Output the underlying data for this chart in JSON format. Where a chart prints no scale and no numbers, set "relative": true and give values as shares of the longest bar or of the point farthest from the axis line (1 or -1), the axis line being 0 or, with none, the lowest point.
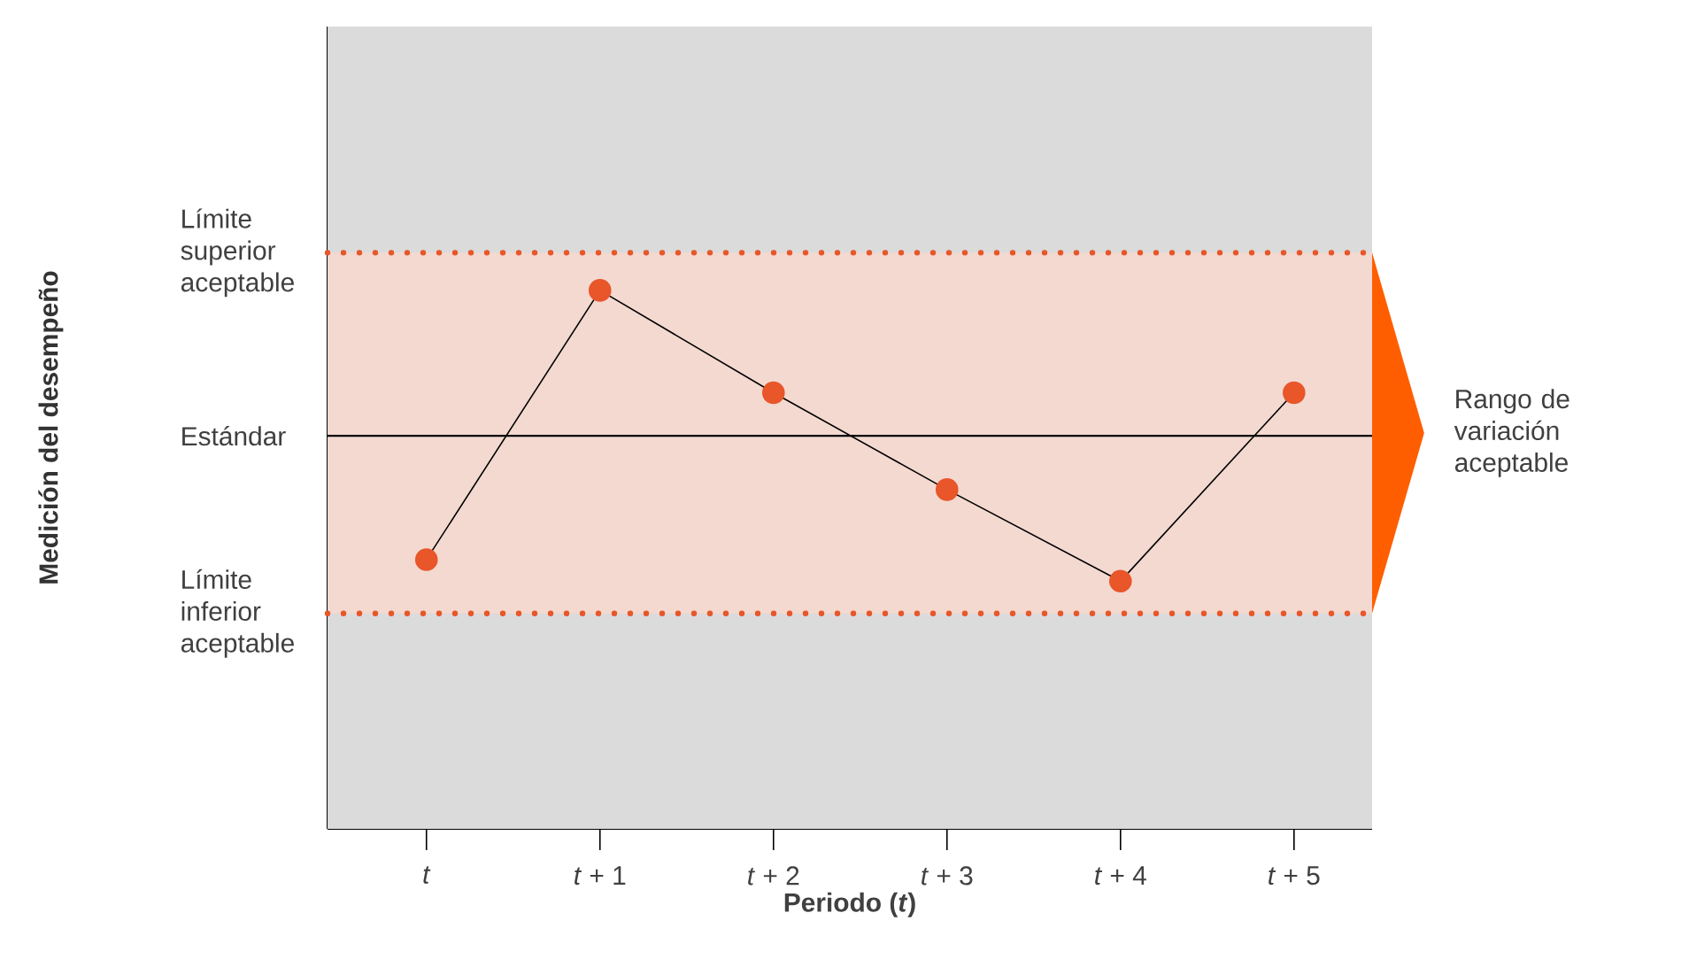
{
  "chart_data": {
    "type": "line",
    "relative": true,
    "categories": [
      "*t*",
      "*t* + 1",
      "*t* + 2",
      "*t* + 3",
      "*t* + 4",
      "*t* + 5"
    ],
    "series": [
      {
        "color": "#e8562a",
        "values": [
          0.5,
          1,
          0.81,
          0.63,
          0.46,
          0.81
        ]
      }
    ],
    "marker": "circle",
    "line_style": "solid",
    "xlabel": "Periodo (*t*)",
    "annotations": [
      "Medición del desempeño"
    ],
    "ref_lines": [
      {
        "axis": "y",
        "value": 1.07,
        "label": "Límite superior aceptable",
        "color": "#e8562a",
        "line_style": "dotted"
      },
      {
        "axis": "y",
        "value": 0.73,
        "label": "Estándar",
        "color": "#000000",
        "line_style": "solid"
      },
      {
        "axis": "y",
        "value": 0.4,
        "label": "Límite inferior aceptable",
        "color": "#e8562a",
        "line_style": "dotted"
      }
    ],
    "bands": [
      {
        "axis": "y",
        "from": 0.4,
        "to": 1.07,
        "label": "Rango de variación aceptable",
        "color": "#f3d9d0"
      }
    ]
  }
}
